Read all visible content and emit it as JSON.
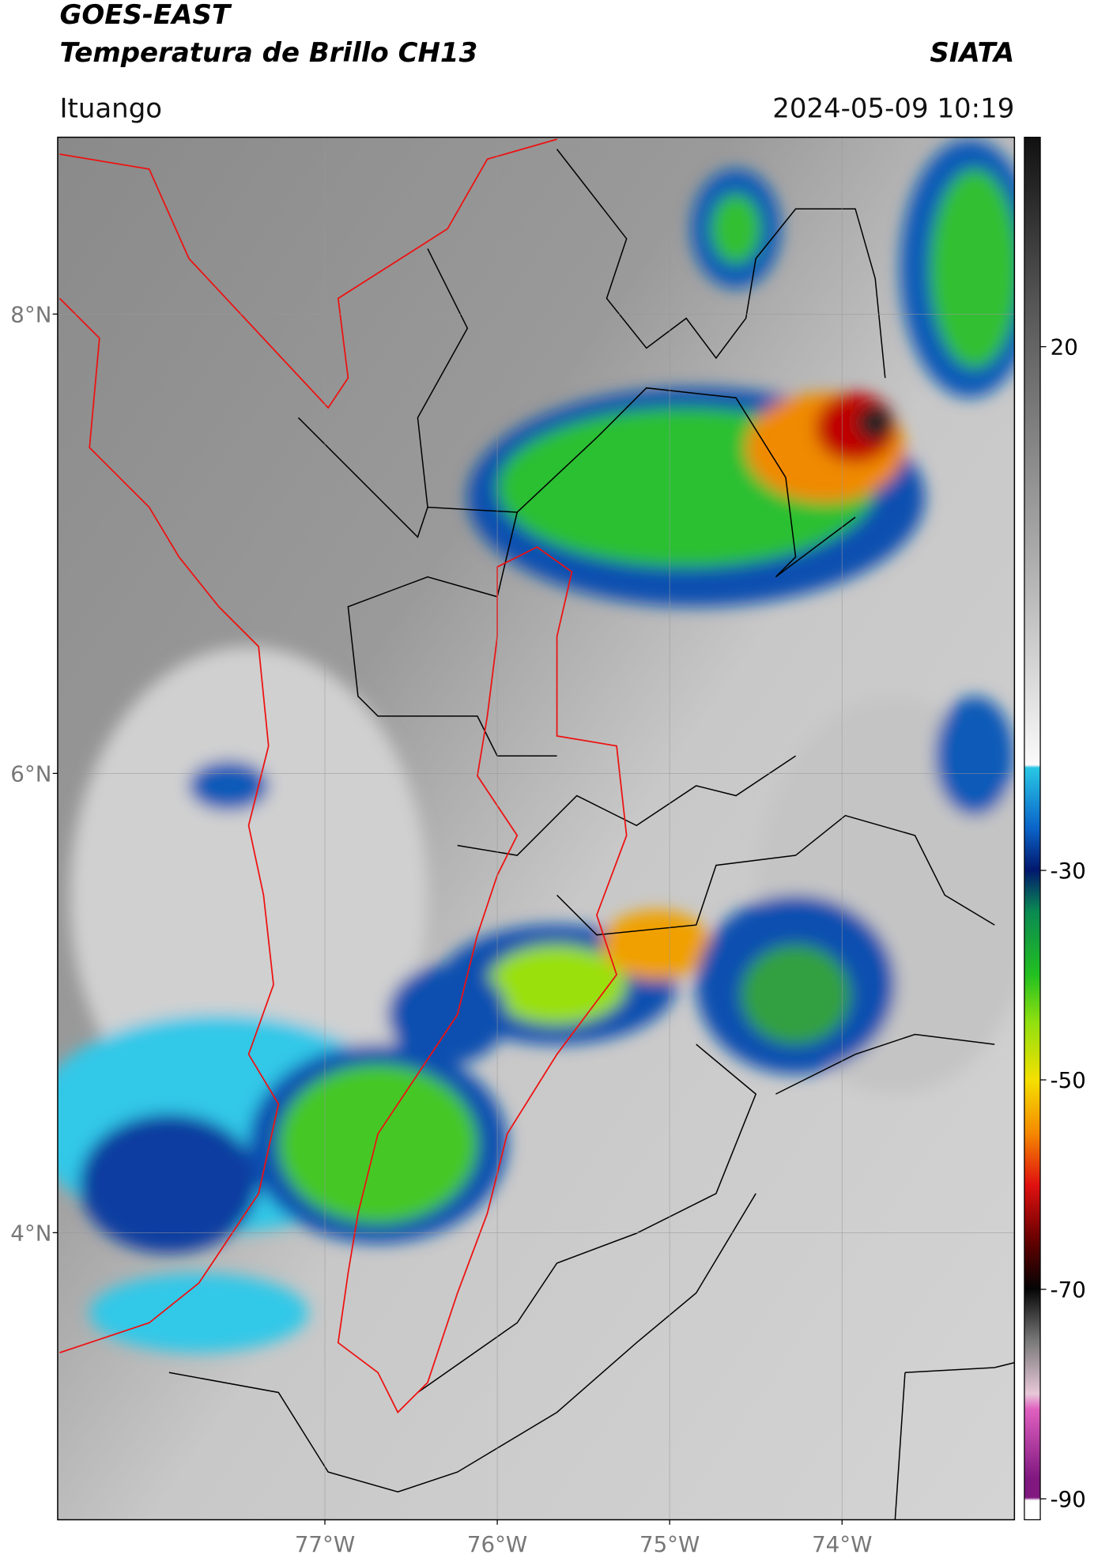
{
  "header": {
    "title": "GOES-EAST",
    "subtitle": "Temperatura de Brillo CH13",
    "source": "SIATA",
    "location": "Ituango",
    "datetime": "2024-05-09 10:19"
  },
  "map": {
    "xlim": [
      -78.55,
      -73.0
    ],
    "ylim": [
      2.75,
      8.77
    ],
    "xticks": [
      {
        "value": -77,
        "label": "77°W"
      },
      {
        "value": -76,
        "label": "76°W"
      },
      {
        "value": -75,
        "label": "75°W"
      },
      {
        "value": -74,
        "label": "74°W"
      }
    ],
    "yticks": [
      {
        "value": 8,
        "label": "8°N"
      },
      {
        "value": 6,
        "label": "6°N"
      },
      {
        "value": 4,
        "label": "4°N"
      }
    ],
    "grid": true
  },
  "colorbar": {
    "lim": [
      -92,
      40
    ],
    "ticks": [
      20,
      -30,
      -50,
      -70,
      -90
    ]
  }
}
